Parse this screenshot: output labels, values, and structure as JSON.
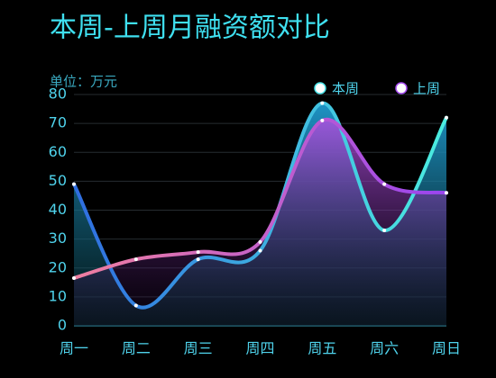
{
  "chart_data": {
    "type": "line",
    "title": "本周-上周月融资额对比",
    "unit_label": "单位：万元",
    "categories": [
      "周一",
      "周二",
      "周三",
      "周四",
      "周五",
      "周六",
      "周日"
    ],
    "series": [
      {
        "name": "本周",
        "color": "#4be3e8",
        "values": [
          49,
          7,
          23,
          26,
          77,
          33,
          72
        ]
      },
      {
        "name": "上周",
        "color": "#a64bf0",
        "values": [
          16.5,
          23,
          25.5,
          29,
          71,
          49,
          46
        ]
      }
    ],
    "ylim": [
      0,
      80
    ],
    "yticks": [
      0,
      10,
      20,
      30,
      40,
      50,
      60,
      70,
      80
    ],
    "grid": true,
    "legend": "top-right"
  }
}
